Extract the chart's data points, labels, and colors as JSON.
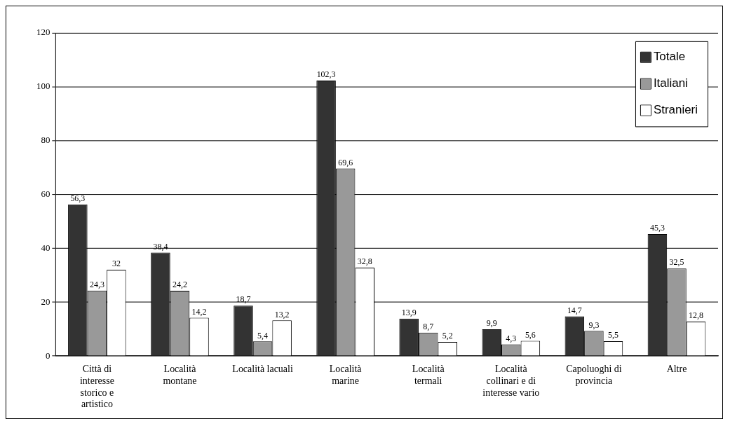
{
  "chart_data": {
    "type": "bar",
    "categories": [
      "Città di interesse storico e artistico",
      "Località montane",
      "Località lacuali",
      "Località marine",
      "Località termali",
      "Località collinari e di interesse vario",
      "Capoluoghi di provincia",
      "Altre"
    ],
    "series": [
      {
        "name": "Totale",
        "color": "#333333",
        "values": [
          56.3,
          38.4,
          18.7,
          102.3,
          13.9,
          9.9,
          14.7,
          45.3
        ],
        "value_labels": [
          "56,3",
          "38,4",
          "18,7",
          "102,3",
          "13,9",
          "9,9",
          "14,7",
          "45,3"
        ]
      },
      {
        "name": "Italiani",
        "color": "#999999",
        "values": [
          24.3,
          24.2,
          5.4,
          69.6,
          8.7,
          4.3,
          9.3,
          32.5
        ],
        "value_labels": [
          "24,3",
          "24,2",
          "5,4",
          "69,6",
          "8,7",
          "4,3",
          "9,3",
          "32,5"
        ]
      },
      {
        "name": "Stranieri",
        "color": "#ffffff",
        "values": [
          32,
          14.2,
          13.2,
          32.8,
          5.2,
          5.6,
          5.5,
          12.8
        ],
        "value_labels": [
          "32",
          "14,2",
          "13,2",
          "32,8",
          "5,2",
          "5,6",
          "5,5",
          "12,8"
        ]
      }
    ],
    "ylim": [
      0,
      120
    ],
    "yticks": [
      0,
      20,
      40,
      60,
      80,
      100,
      120
    ],
    "grid": "y",
    "legend": "top right"
  }
}
